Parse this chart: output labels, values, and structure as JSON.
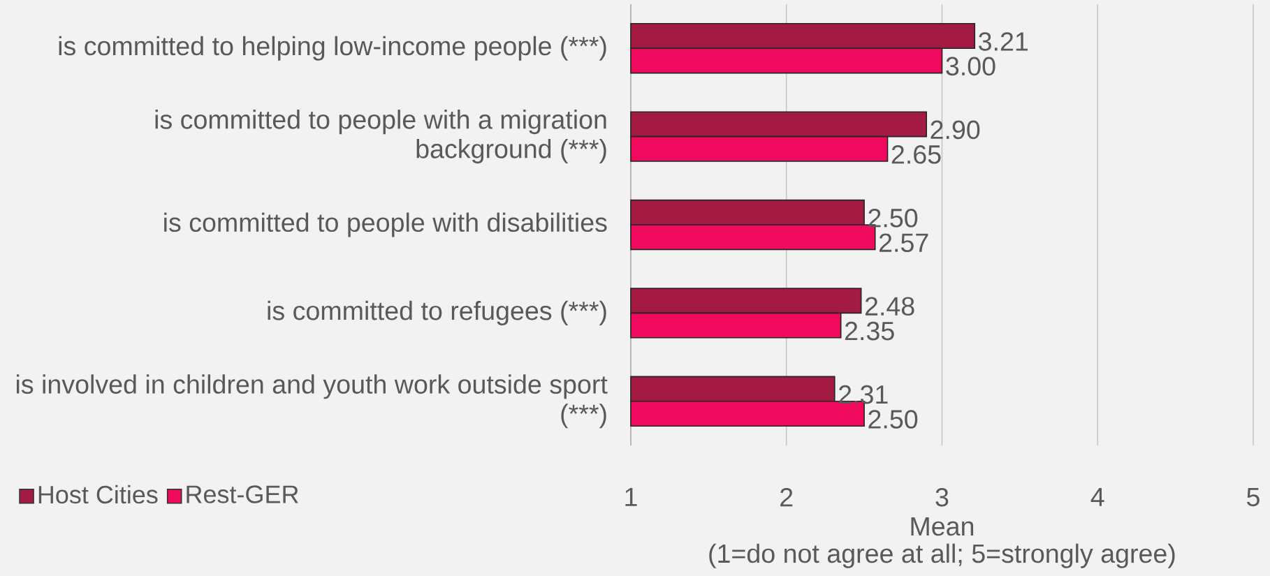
{
  "chart_data": {
    "type": "bar",
    "orientation": "horizontal",
    "xlabel": "Mean\n(1=do not agree at all; 5=strongly agree)",
    "categories": [
      "is committed to helping low-income people (***)",
      "is committed to people with a migration background (***)",
      "is committed to people with disabilities",
      "is committed to refugees (***)",
      "is involved in children and youth work outside sport (***)"
    ],
    "series": [
      {
        "name": "Host Cities",
        "color": "#a31a42",
        "values": [
          3.21,
          2.9,
          2.5,
          2.48,
          2.31
        ],
        "value_labels": [
          "3.21",
          "2.90",
          "2.50",
          "2.48",
          "2.31"
        ]
      },
      {
        "name": "Rest-GER",
        "color": "#ef0a5e",
        "values": [
          3.0,
          2.65,
          2.57,
          2.35,
          2.5
        ],
        "value_labels": [
          "3.00",
          "2.65",
          "2.57",
          "2.35",
          "2.50"
        ]
      }
    ],
    "xlim": [
      1,
      5
    ],
    "xticks": [
      1,
      2,
      3,
      4,
      5
    ],
    "grid": "x",
    "legend": "bottom left"
  }
}
